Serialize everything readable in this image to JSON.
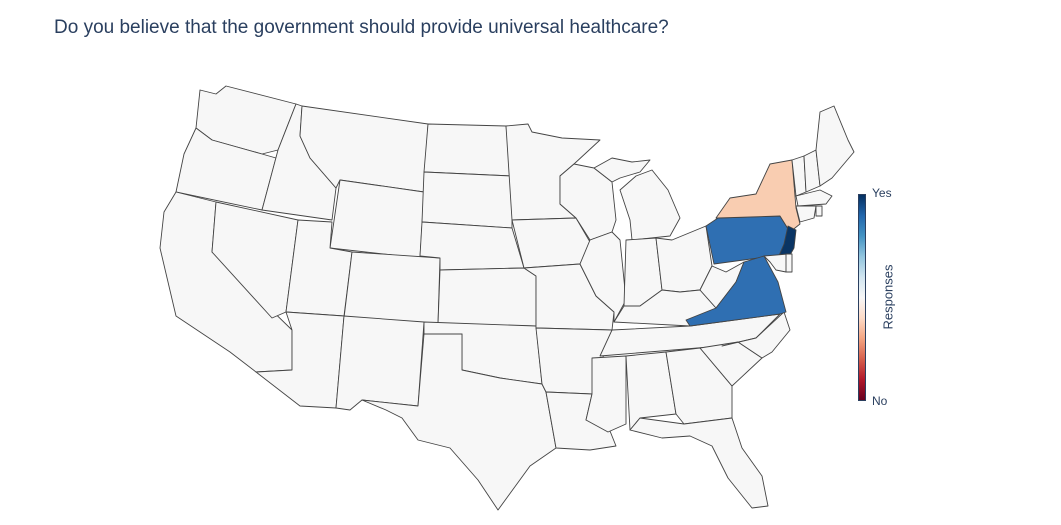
{
  "title": "Do you believe that the government should provide universal healthcare?",
  "colorbar": {
    "title": "Responses",
    "top_label": "Yes",
    "bottom_label": "No",
    "gradient": [
      "#67001f",
      "#b2182b",
      "#d6604d",
      "#f4a582",
      "#fddbc7",
      "#f7f7f7",
      "#d1e5f0",
      "#92c5de",
      "#4393c3",
      "#2166ac",
      "#053061"
    ]
  },
  "colors": {
    "no_data": "#f7f7f7",
    "NY": "#f9cdb1",
    "PA": "#2f6fb2",
    "VA": "#2f6fb2",
    "NJ": "#0a3564"
  },
  "highlighted_states": [
    "NY",
    "PA",
    "VA",
    "NJ"
  ]
}
